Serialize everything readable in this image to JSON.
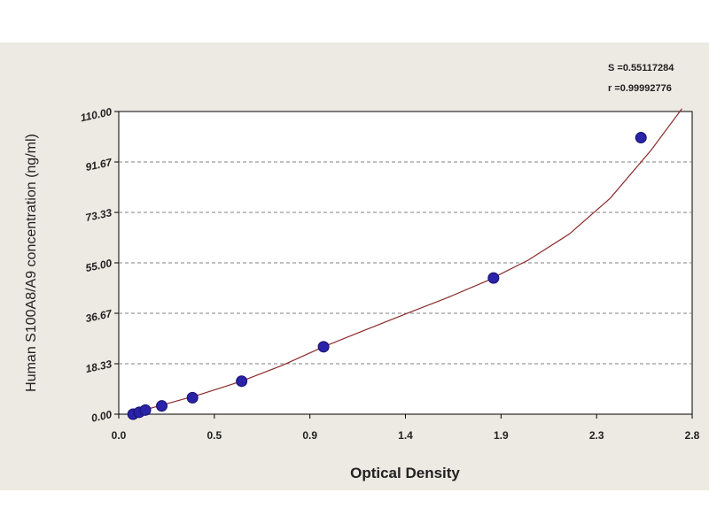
{
  "chart_data": {
    "type": "scatter",
    "xlabel": "Optical Density",
    "ylabel": "Human S100A8/A9 concentration (ng/ml)",
    "xlim": [
      0.0,
      2.8
    ],
    "ylim": [
      0.0,
      110.0
    ],
    "x_ticks": [
      "0.0",
      "0.5",
      "0.9",
      "1.4",
      "1.9",
      "2.3",
      "2.8"
    ],
    "y_ticks": [
      "0.00",
      "18.33",
      "36.67",
      "55.00",
      "73.33",
      "91.67",
      "110.00"
    ],
    "grid": "horizontal dashed",
    "series": [
      {
        "x": [
          0.07,
          0.1,
          0.13,
          0.21,
          0.36,
          0.6,
          1.0,
          1.83,
          2.55
        ],
        "y": [
          0.0,
          0.7,
          1.5,
          3.0,
          6.0,
          12.0,
          24.5,
          49.5,
          100.5
        ],
        "color": "#2a22a8"
      }
    ],
    "fit_curve": {
      "x": [
        0.05,
        0.2,
        0.4,
        0.6,
        0.8,
        1.0,
        1.2,
        1.4,
        1.6,
        1.8,
        2.0,
        2.2,
        2.4,
        2.6,
        2.75
      ],
      "y": [
        0.0,
        3.1,
        7.2,
        12.0,
        17.8,
        24.5,
        30.5,
        36.4,
        42.2,
        48.5,
        56.0,
        65.5,
        78.5,
        96.0,
        111.0
      ],
      "color": "#8b2a2a"
    },
    "stats": {
      "s": "S =0.55117284",
      "r": "r =0.99992776"
    }
  },
  "colors": {
    "background": "#ede9e3",
    "plot_area": "#ffffff",
    "point": "#2a22a8",
    "curve": "#8b2a2a",
    "grid": "#808080"
  }
}
